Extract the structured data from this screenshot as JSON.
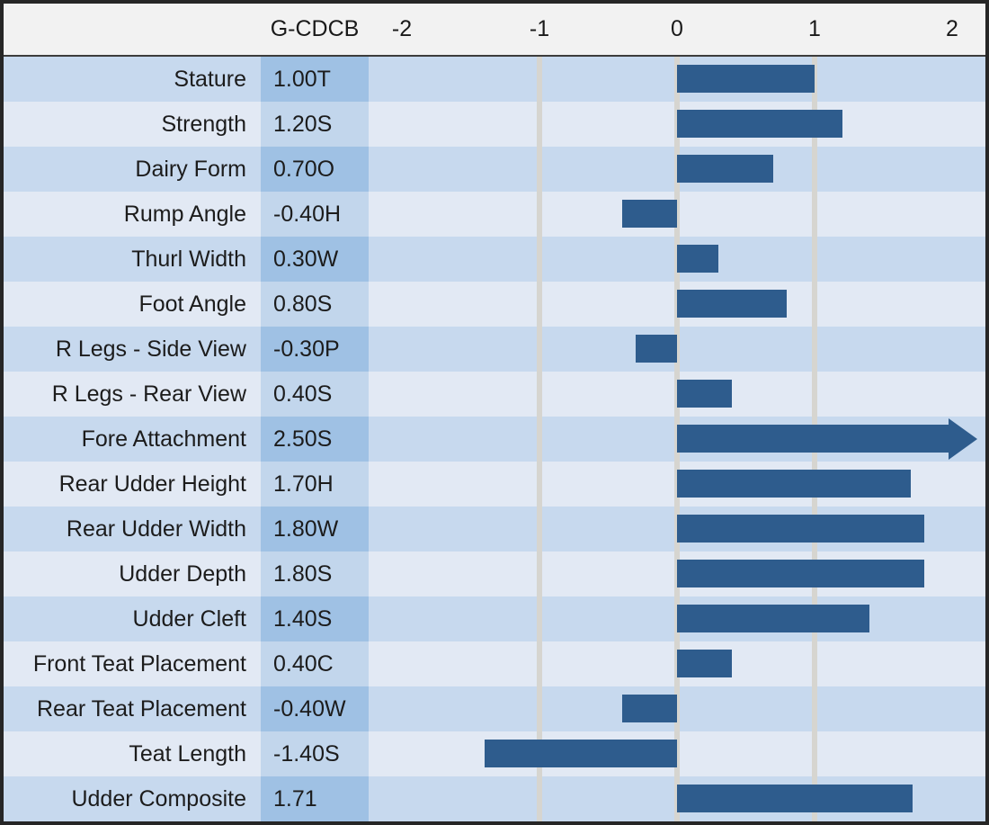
{
  "header": {
    "column_label": "G-CDCB"
  },
  "chart_data": {
    "type": "bar",
    "orientation": "horizontal",
    "categories": [
      "Stature",
      "Strength",
      "Dairy Form",
      "Rump Angle",
      "Thurl Width",
      "Foot Angle",
      "R Legs - Side View",
      "R Legs - Rear View",
      "Fore Attachment",
      "Rear Udder Height",
      "Rear Udder Width",
      "Udder Depth",
      "Udder Cleft",
      "Front Teat Placement",
      "Rear Teat Placement",
      "Teat Length",
      "Udder Composite"
    ],
    "values": [
      1.0,
      1.2,
      0.7,
      -0.4,
      0.3,
      0.8,
      -0.3,
      0.4,
      2.5,
      1.7,
      1.8,
      1.8,
      1.4,
      0.4,
      -0.4,
      -1.4,
      1.71
    ],
    "value_labels": [
      "1.00T",
      "1.20S",
      "0.70O",
      "-0.40H",
      "0.30W",
      "0.80S",
      "-0.30P",
      "0.40S",
      "2.50S",
      "1.70H",
      "1.80W",
      "1.80S",
      "1.40S",
      "0.40C",
      "-0.40W",
      "-1.40S",
      "1.71"
    ],
    "x_tick_labels": [
      "-2",
      "-1",
      "0",
      "1",
      "2"
    ],
    "x_ticks": [
      -2,
      -1,
      0,
      1,
      2
    ],
    "gridlines_at": [
      -1,
      0,
      1
    ],
    "xlim": [
      -2.24,
      2.24
    ],
    "grid": true,
    "legend": false,
    "note": "Bars exceeding the right axis limit are drawn with an overflow arrowhead"
  },
  "colors": {
    "bar": "#2e5c8d",
    "row_dark": "#c7d9ee",
    "row_light": "#e2e9f4",
    "value_col_dark": "#9fc1e4",
    "value_col_light": "#c2d6ec",
    "gridline": "#d6d5d0",
    "header_bg": "#f2f2f2",
    "frame": "#262626"
  }
}
